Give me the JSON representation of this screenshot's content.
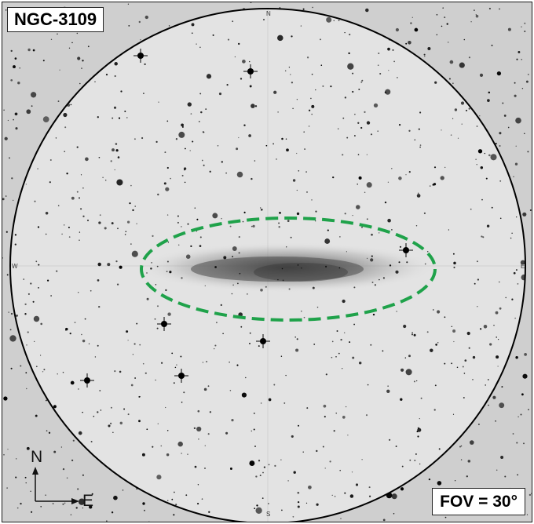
{
  "image": {
    "title": "NGC-3109",
    "fov_label": "FOV = 30°",
    "cardinals": {
      "north": "N",
      "south": "S",
      "east": "E",
      "west": "W"
    },
    "compass": {
      "north": "N",
      "east": "E"
    },
    "colors": {
      "outer_background": "#cfcfcf",
      "field_background": "#e3e3e3",
      "circle_border": "#000000",
      "highlight_ellipse": "#1fa24a",
      "stars": "#000000"
    },
    "highlight": {
      "style": "dashed ellipse",
      "target": "galaxy"
    }
  }
}
